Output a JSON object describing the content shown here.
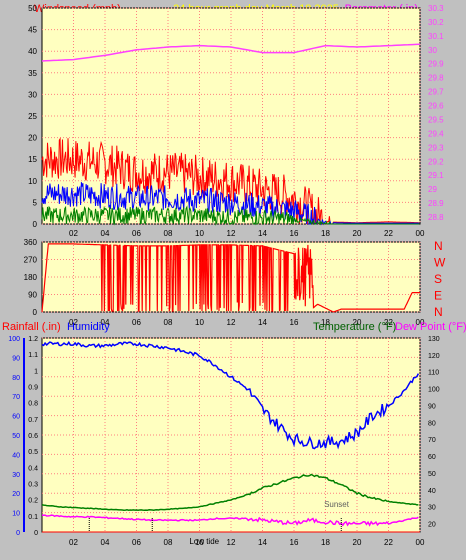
{
  "header": {
    "title": "24 hour graph day   March 18 2025",
    "wind_label": "Windspeed (mph)",
    "baro_label": "Barometer (.in)"
  },
  "wind_panel": {
    "y_ticks": [
      "0",
      "5",
      "10",
      "15",
      "20",
      "25",
      "30",
      "35",
      "40",
      "45",
      "50"
    ],
    "baro_ticks": [
      "28.8",
      "28.9",
      "29",
      "29.1",
      "29.2",
      "29.3",
      "29.4",
      "29.5",
      "29.6",
      "29.7",
      "29.8",
      "29.9",
      "30",
      "30.1",
      "30.2",
      "30.3"
    ]
  },
  "dir_panel": {
    "y_ticks": [
      "0",
      "90",
      "180",
      "270",
      "360"
    ],
    "compass": [
      "N",
      "W",
      "S",
      "E",
      "N"
    ]
  },
  "bottom_panel": {
    "rain_label": "Rainfall (.in)",
    "humidity_label": "Humidity",
    "temp_label": "Temperature (°F)",
    "dew_label": "Dew Point (°F)",
    "humidity_ticks": [
      "0",
      "10",
      "20",
      "30",
      "40",
      "50",
      "60",
      "70",
      "80",
      "90",
      "100"
    ],
    "rain_ticks": [
      "0",
      "0.1",
      "0.2",
      "0.3",
      "0.4",
      "0.5",
      "0.6",
      "0.7",
      "0.8",
      "0.9",
      "1",
      "1.1",
      "1.2"
    ],
    "temp_ticks": [
      "20",
      "30",
      "40",
      "50",
      "60",
      "70",
      "80",
      "90",
      "100",
      "110",
      "120",
      "130"
    ],
    "sunrise_label": "Sunset",
    "low_tide_label": "Low tide"
  },
  "x_ticks": [
    "02",
    "04",
    "06",
    "08",
    "10",
    "12",
    "14",
    "16",
    "18",
    "20",
    "22",
    "00"
  ],
  "colors": {
    "plot_bg": "#ffffc0",
    "grid": "#ff8080",
    "gust": "#ff0000",
    "avg_wind": "#0000ff",
    "min_wind": "#008000",
    "barometer": "#ff40ff",
    "direction": "#ff0000",
    "humidity": "#0000ff",
    "temperature": "#008000",
    "dew_point": "#ff00ff"
  },
  "chart_data": [
    {
      "type": "line",
      "title": "24 hour graph day   March 18 2025",
      "x_hours": [
        0,
        2,
        4,
        6,
        8,
        10,
        12,
        14,
        16,
        18,
        20,
        22,
        24
      ],
      "ylabel": "Windspeed (mph)",
      "ylim": [
        0,
        50
      ],
      "y2label": "Barometer (.in)",
      "y2lim": [
        28.75,
        30.3
      ],
      "series": [
        {
          "name": "Barometer (.in)",
          "axis": "right",
          "values": [
            29.92,
            29.93,
            29.96,
            30.0,
            30.02,
            30.03,
            30.02,
            29.98,
            29.98,
            30.03,
            30.02,
            30.03,
            30.04
          ]
        },
        {
          "name": "Gust",
          "values": [
            15,
            15,
            14,
            12,
            12,
            11,
            10,
            8,
            6,
            0.5,
            0.3,
            0.5,
            0.3
          ]
        },
        {
          "name": "Average",
          "values": [
            7,
            7,
            6.5,
            6,
            6,
            5.5,
            5,
            4,
            3,
            0.3,
            0.2,
            0.2,
            0.2
          ]
        },
        {
          "name": "Minimum",
          "values": [
            2,
            2,
            2,
            2,
            2,
            2,
            1.5,
            1.5,
            1,
            0,
            0,
            0,
            0
          ]
        }
      ]
    },
    {
      "type": "line",
      "ylabel": "Wind direction",
      "ylim": [
        0,
        360
      ],
      "x_hours": [
        0,
        0.4,
        2,
        4,
        6,
        8,
        10,
        12,
        14,
        16,
        17.2,
        17.5,
        18.5,
        19,
        23,
        23.5,
        24
      ],
      "series": [
        {
          "name": "Direction",
          "values": [
            0,
            350,
            350,
            345,
            340,
            340,
            345,
            345,
            340,
            300,
            20,
            40,
            0,
            15,
            15,
            100,
            100
          ]
        }
      ]
    },
    {
      "type": "line",
      "x_hours": [
        0,
        1,
        2,
        3,
        4,
        5,
        6,
        7,
        8,
        9,
        10,
        11,
        12,
        13,
        14,
        15,
        16,
        17,
        18,
        19,
        20,
        21,
        22,
        23,
        24
      ],
      "ylabel": "Humidity",
      "ylim": [
        0,
        100
      ],
      "y2label": "Temperature (°F)",
      "y2lim": [
        15,
        130
      ],
      "series": [
        {
          "name": "Humidity",
          "values": [
            97,
            97,
            97,
            96,
            96,
            97,
            97,
            96,
            95,
            93,
            91,
            86,
            80,
            74,
            63,
            55,
            48,
            46,
            46,
            47,
            51,
            60,
            65,
            73,
            83
          ]
        },
        {
          "name": "Temperature (°F)",
          "axis": "right",
          "values": [
            31,
            30,
            29.5,
            29,
            28.5,
            28,
            28,
            28,
            28.5,
            29,
            30,
            32,
            34,
            37,
            41,
            44,
            47,
            49,
            47,
            43,
            38,
            35,
            33,
            32,
            31
          ]
        },
        {
          "name": "Dew Point (°F)",
          "axis": "right",
          "values": [
            25,
            24.5,
            24,
            24,
            23.5,
            23,
            22.5,
            22,
            22,
            22,
            22,
            23,
            23,
            23,
            22,
            21,
            20,
            22,
            21,
            20,
            20,
            20,
            20,
            22,
            24
          ]
        },
        {
          "name": "Rainfall (.in)",
          "values": [
            0,
            0,
            0,
            0,
            0,
            0,
            0,
            0,
            0,
            0,
            0,
            0,
            0,
            0,
            0,
            0,
            0,
            0,
            0,
            0,
            0,
            0,
            0,
            0,
            0
          ]
        }
      ]
    }
  ]
}
